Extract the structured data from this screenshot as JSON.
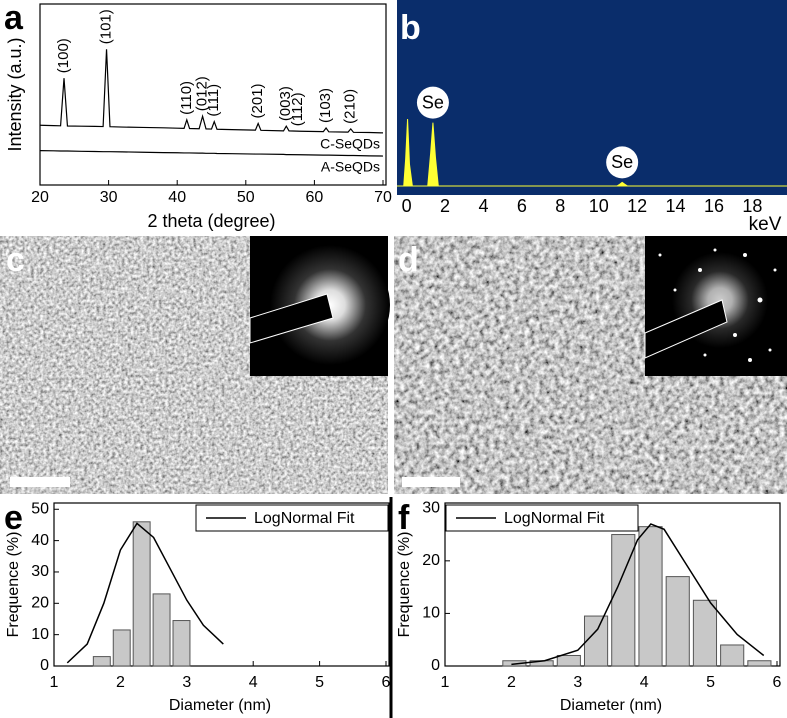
{
  "chart_data": [
    {
      "type": "line",
      "panel_label": "a",
      "x_label": "2 theta (degree)",
      "y_label": "Intensity (a.u.)",
      "x": [
        20,
        22,
        23,
        23.5,
        24,
        26,
        28,
        29.2,
        29.7,
        30.2,
        32,
        35,
        38,
        40,
        41,
        41.4,
        41.8,
        43.2,
        43.7,
        44.2,
        45,
        45.4,
        45.8,
        48,
        51.4,
        51.8,
        52.2,
        55.5,
        55.9,
        56.3,
        58,
        61.3,
        61.7,
        62.1,
        64.9,
        65.3,
        65.7,
        68,
        70
      ],
      "series": [
        {
          "name": "C-SeQDs",
          "color": "#000000",
          "values": [
            3.3,
            3.28,
            3.27,
            5.9,
            3.26,
            3.25,
            3.24,
            3.23,
            7.5,
            3.22,
            3.2,
            3.18,
            3.16,
            3.14,
            3.13,
            3.6,
            3.12,
            3.11,
            3.8,
            3.1,
            3.09,
            3.5,
            3.08,
            3.06,
            3.03,
            3.4,
            3.02,
            2.99,
            3.25,
            2.99,
            2.97,
            2.95,
            3.15,
            2.94,
            2.92,
            3.1,
            2.91,
            2.9,
            2.88
          ]
        },
        {
          "name": "A-SeQDs",
          "color": "#000000",
          "values": [
            1.9,
            1.89,
            1.88,
            1.88,
            1.88,
            1.86,
            1.85,
            1.84,
            1.84,
            1.84,
            1.83,
            1.81,
            1.79,
            1.78,
            1.77,
            1.77,
            1.77,
            1.76,
            1.76,
            1.75,
            1.75,
            1.75,
            1.74,
            1.73,
            1.71,
            1.71,
            1.71,
            1.69,
            1.68,
            1.68,
            1.67,
            1.65,
            1.65,
            1.65,
            1.63,
            1.63,
            1.63,
            1.61,
            1.6
          ]
        }
      ],
      "xlim": [
        20,
        70
      ],
      "xticks": [
        20,
        30,
        40,
        50,
        60,
        70
      ],
      "ylim": [
        0,
        10
      ],
      "annotations": [
        {
          "text": "(100)",
          "x": 23.5
        },
        {
          "text": "(101)",
          "x": 29.7
        },
        {
          "text": "(110)",
          "x": 41.4
        },
        {
          "text": "(012)",
          "x": 43.7
        },
        {
          "text": "(111)",
          "x": 45.4
        },
        {
          "text": "(201)",
          "x": 51.8
        },
        {
          "text": "(003)",
          "x": 55.9
        },
        {
          "text": "(112)",
          "x": 57.6
        },
        {
          "text": "(103)",
          "x": 61.7
        },
        {
          "text": "(210)",
          "x": 65.3
        }
      ]
    },
    {
      "type": "area",
      "panel_label": "b",
      "x_label": "keV",
      "x": [
        -0.5,
        -0.15,
        -0.05,
        0.05,
        0.15,
        0.3,
        1.1,
        1.25,
        1.37,
        1.5,
        1.65,
        10.95,
        11.1,
        11.22,
        11.35,
        11.5,
        19.8
      ],
      "values": [
        0,
        0,
        1.5,
        3.7,
        1.2,
        0,
        0,
        1.8,
        3.5,
        1.6,
        0,
        0,
        0.1,
        0.2,
        0.1,
        0,
        0
      ],
      "color": "#ffff33",
      "background": "#0a2d6b",
      "xlim": [
        -0.5,
        19.8
      ],
      "xticks": [
        0,
        2,
        4,
        6,
        8,
        10,
        12,
        14,
        16,
        18
      ],
      "ylim": [
        0,
        10
      ],
      "annotations": [
        {
          "text": "Se",
          "x": 1.37
        },
        {
          "text": "Se",
          "x": 11.22
        }
      ]
    },
    {
      "type": "histogram",
      "panel_label": "e",
      "x_label": "Diameter (nm)",
      "y_label": "Frequence (%)",
      "bins": [
        1.57,
        1.87,
        2.17,
        2.47,
        2.77,
        3.07
      ],
      "values": [
        3,
        11.5,
        46,
        23,
        14.5
      ],
      "color": "#c8c8c8",
      "fit": {
        "name": "LogNormal Fit",
        "color": "#000000",
        "x": [
          1.2,
          1.5,
          1.75,
          2.0,
          2.25,
          2.5,
          2.75,
          3.0,
          3.25,
          3.55
        ],
        "values": [
          1,
          7,
          20,
          37,
          45.5,
          41,
          31,
          21,
          13,
          7
        ]
      },
      "legend": "upper right",
      "xlim": [
        1,
        6
      ],
      "xticks": [
        1,
        2,
        3,
        4,
        5,
        6
      ],
      "ylim": [
        0,
        52
      ],
      "yticks": [
        0,
        10,
        20,
        30,
        40,
        50
      ]
    },
    {
      "type": "histogram",
      "panel_label": "f",
      "x_label": "Diameter (nm)",
      "y_label": "Frequence (%)",
      "bins": [
        1.84,
        2.25,
        2.66,
        3.07,
        3.48,
        3.89,
        4.3,
        4.71,
        5.12,
        5.53,
        5.94
      ],
      "values": [
        1,
        1,
        2,
        9.5,
        25,
        26.5,
        17,
        12.5,
        4,
        1
      ],
      "color": "#c8c8c8",
      "fit": {
        "name": "LogNormal Fit",
        "color": "#000000",
        "x": [
          2.0,
          2.5,
          3.0,
          3.3,
          3.6,
          3.9,
          4.1,
          4.3,
          4.6,
          5.0,
          5.4,
          5.8
        ],
        "values": [
          0.3,
          1,
          3,
          7,
          15,
          24,
          27,
          26,
          20,
          12,
          6,
          2
        ]
      },
      "legend": "upper left",
      "xlim": [
        1,
        6
      ],
      "xticks": [
        1,
        2,
        3,
        4,
        5,
        6
      ],
      "ylim": [
        0,
        31
      ],
      "yticks": [
        0,
        10,
        20,
        30
      ]
    }
  ],
  "images": [
    {
      "panel_label": "c"
    },
    {
      "panel_label": "d"
    }
  ]
}
